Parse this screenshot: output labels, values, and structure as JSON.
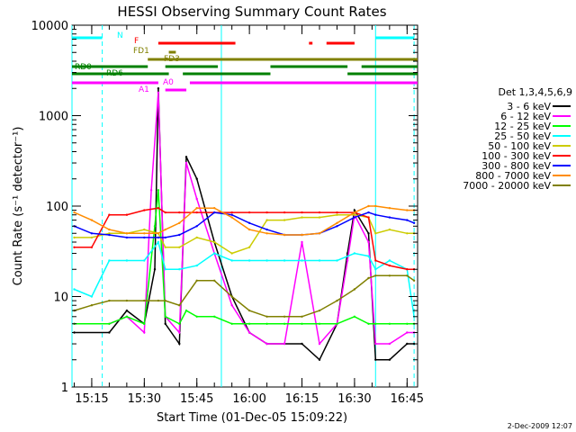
{
  "chart_data": {
    "type": "line",
    "title": "HESSI Observing Summary Count Rates",
    "xlabel": "Start Time (01-Dec-05 15:09:22)",
    "ylabel": "Count Rate (s⁻¹ detector⁻¹)",
    "xlim": [
      "15:09:22",
      "16:48:00"
    ],
    "ylim": [
      1,
      10000
    ],
    "yscale": "log",
    "x_ticks": [
      "15:15",
      "15:30",
      "15:45",
      "16:00",
      "16:15",
      "16:30",
      "16:45"
    ],
    "y_ticks": [
      "1",
      "10",
      "100",
      "1000",
      "10000"
    ],
    "legend_title": "Det 1,3,4,5,6,9",
    "legend_position": "right",
    "series": [
      {
        "name": "3 - 6 keV",
        "color": "#000000",
        "x": [
          "15:10",
          "15:20",
          "15:25",
          "15:30",
          "15:33",
          "15:34",
          "15:36",
          "15:40",
          "15:42",
          "15:45",
          "15:50",
          "15:55",
          "16:00",
          "16:05",
          "16:10",
          "16:15",
          "16:20",
          "16:25",
          "16:28",
          "16:30",
          "16:34",
          "16:36",
          "16:40",
          "16:45",
          "16:47"
        ],
        "values": [
          4,
          4,
          7,
          5,
          20,
          2000,
          5,
          3,
          350,
          200,
          40,
          10,
          4,
          3,
          3,
          3,
          2,
          5,
          30,
          90,
          50,
          2,
          2,
          3,
          3
        ]
      },
      {
        "name": "6 - 12 keV",
        "color": "#ff00ff",
        "x": [
          "15:10",
          "15:20",
          "15:25",
          "15:30",
          "15:32",
          "15:34",
          "15:36",
          "15:40",
          "15:42",
          "15:45",
          "15:50",
          "15:55",
          "16:00",
          "16:05",
          "16:10",
          "16:15",
          "16:20",
          "16:25",
          "16:28",
          "16:30",
          "16:34",
          "16:36",
          "16:40",
          "16:45",
          "16:47"
        ],
        "values": [
          5,
          5,
          6,
          4,
          150,
          1800,
          6,
          4,
          300,
          120,
          30,
          8,
          4,
          3,
          3,
          40,
          3,
          5,
          25,
          80,
          40,
          3,
          3,
          4,
          4
        ]
      },
      {
        "name": "12 - 25 keV",
        "color": "#00ff00",
        "x": [
          "15:10",
          "15:20",
          "15:25",
          "15:30",
          "15:33",
          "15:34",
          "15:36",
          "15:40",
          "15:42",
          "15:45",
          "15:50",
          "15:55",
          "16:00",
          "16:05",
          "16:10",
          "16:15",
          "16:20",
          "16:25",
          "16:30",
          "16:34",
          "16:36",
          "16:40",
          "16:45",
          "16:47"
        ],
        "values": [
          5,
          5,
          6,
          5,
          60,
          150,
          6,
          5,
          7,
          6,
          6,
          5,
          5,
          5,
          5,
          5,
          5,
          5,
          6,
          5,
          5,
          5,
          5,
          5
        ]
      },
      {
        "name": "25 - 50 keV",
        "color": "#00ffff",
        "x": [
          "15:10",
          "15:15",
          "15:20",
          "15:25",
          "15:30",
          "15:34",
          "15:36",
          "15:40",
          "15:45",
          "15:50",
          "15:55",
          "16:00",
          "16:05",
          "16:10",
          "16:15",
          "16:20",
          "16:25",
          "16:30",
          "16:34",
          "16:36",
          "16:40",
          "16:45",
          "16:47"
        ],
        "values": [
          12,
          10,
          25,
          25,
          25,
          40,
          20,
          20,
          22,
          30,
          25,
          25,
          25,
          25,
          25,
          25,
          25,
          30,
          28,
          20,
          25,
          20,
          6
        ]
      },
      {
        "name": "50 - 100 keV",
        "color": "#cccc00",
        "x": [
          "15:10",
          "15:15",
          "15:20",
          "15:25",
          "15:30",
          "15:34",
          "15:36",
          "15:40",
          "15:45",
          "15:50",
          "15:55",
          "16:00",
          "16:05",
          "16:10",
          "16:15",
          "16:20",
          "16:25",
          "16:30",
          "16:34",
          "16:36",
          "16:40",
          "16:45",
          "16:47"
        ],
        "values": [
          45,
          45,
          50,
          50,
          55,
          50,
          35,
          35,
          45,
          40,
          30,
          35,
          70,
          70,
          75,
          75,
          80,
          80,
          75,
          50,
          55,
          50,
          50
        ]
      },
      {
        "name": "100 - 300 keV",
        "color": "#ff0000",
        "x": [
          "15:10",
          "15:15",
          "15:20",
          "15:25",
          "15:30",
          "15:34",
          "15:36",
          "15:40",
          "15:45",
          "15:50",
          "15:55",
          "16:00",
          "16:05",
          "16:10",
          "16:15",
          "16:20",
          "16:25",
          "16:30",
          "16:34",
          "16:36",
          "16:40",
          "16:45",
          "16:47"
        ],
        "values": [
          35,
          35,
          80,
          80,
          90,
          95,
          85,
          85,
          85,
          85,
          85,
          85,
          85,
          85,
          85,
          85,
          85,
          85,
          75,
          25,
          22,
          20,
          20
        ]
      },
      {
        "name": "300 - 800 keV",
        "color": "#0000ff",
        "x": [
          "15:10",
          "15:15",
          "15:20",
          "15:25",
          "15:30",
          "15:34",
          "15:36",
          "15:40",
          "15:45",
          "15:50",
          "15:55",
          "16:00",
          "16:05",
          "16:10",
          "16:15",
          "16:20",
          "16:25",
          "16:30",
          "16:34",
          "16:36",
          "16:40",
          "16:45",
          "16:47"
        ],
        "values": [
          60,
          50,
          48,
          45,
          45,
          45,
          45,
          48,
          60,
          85,
          80,
          65,
          55,
          48,
          48,
          50,
          60,
          75,
          85,
          80,
          75,
          70,
          65
        ]
      },
      {
        "name": "800 - 7000 keV",
        "color": "#ff8c00",
        "x": [
          "15:10",
          "15:15",
          "15:20",
          "15:25",
          "15:30",
          "15:34",
          "15:36",
          "15:40",
          "15:45",
          "15:50",
          "15:55",
          "16:00",
          "16:05",
          "16:10",
          "16:15",
          "16:20",
          "16:25",
          "16:30",
          "16:34",
          "16:36",
          "16:40",
          "16:45",
          "16:47"
        ],
        "values": [
          85,
          70,
          55,
          50,
          50,
          50,
          55,
          65,
          95,
          95,
          75,
          55,
          50,
          48,
          48,
          50,
          65,
          85,
          100,
          100,
          95,
          90,
          90
        ]
      },
      {
        "name": "7000 - 20000 keV",
        "color": "#808000",
        "x": [
          "15:10",
          "15:15",
          "15:20",
          "15:25",
          "15:30",
          "15:34",
          "15:36",
          "15:40",
          "15:45",
          "15:50",
          "15:55",
          "16:00",
          "16:05",
          "16:10",
          "16:15",
          "16:20",
          "16:25",
          "16:30",
          "16:34",
          "16:36",
          "16:40",
          "16:45",
          "16:47"
        ],
        "values": [
          7,
          8,
          9,
          9,
          9,
          9,
          9,
          8,
          15,
          15,
          10,
          7,
          6,
          6,
          6,
          7,
          9,
          12,
          16,
          17,
          17,
          17,
          15
        ]
      }
    ],
    "annotations": [
      {
        "text": "N",
        "color": "#00ffff"
      },
      {
        "text": "F",
        "color": "#ff0000"
      },
      {
        "text": "FD1",
        "color": "#808000"
      },
      {
        "text": "FD3",
        "color": "#808000"
      },
      {
        "text": "RD0",
        "color": "#008000"
      },
      {
        "text": "RD6",
        "color": "#008000"
      },
      {
        "text": "A0",
        "color": "#ff00ff"
      },
      {
        "text": "A1",
        "color": "#ff00ff"
      }
    ],
    "status_bars": [
      {
        "label": "N",
        "color": "#00ffff",
        "segments": [
          [
            "15:09:22",
            "15:18"
          ],
          [
            "16:36",
            "16:47"
          ]
        ]
      },
      {
        "label": "F",
        "color": "#ff0000",
        "segments": [
          [
            "15:34",
            "15:56"
          ],
          [
            "16:17",
            "16:18"
          ],
          [
            "16:22",
            "16:30"
          ]
        ]
      },
      {
        "label": "FD1",
        "color": "#808000",
        "segments": [
          [
            "15:37",
            "15:39"
          ]
        ]
      },
      {
        "label": "FD3",
        "color": "#808000",
        "segments": [
          [
            "15:31",
            "16:48"
          ]
        ]
      },
      {
        "label": "RD0",
        "color": "#008000",
        "segments": [
          [
            "15:09:22",
            "15:31"
          ],
          [
            "15:36",
            "15:51"
          ],
          [
            "16:06",
            "16:28"
          ],
          [
            "16:32",
            "16:48"
          ]
        ]
      },
      {
        "label": "RD6",
        "color": "#008000",
        "segments": [
          [
            "15:09:22",
            "15:37"
          ],
          [
            "15:41",
            "16:06"
          ],
          [
            "16:28",
            "16:48"
          ]
        ]
      },
      {
        "label": "A0",
        "color": "#ff00ff",
        "segments": [
          [
            "15:09:22",
            "15:34"
          ],
          [
            "15:43",
            "16:48"
          ]
        ]
      },
      {
        "label": "A1",
        "color": "#ff00ff",
        "segments": [
          [
            "15:36",
            "15:42"
          ]
        ]
      }
    ],
    "vertical_markers": [
      {
        "time": "15:09:22",
        "color": "#00ffff",
        "style": "solid"
      },
      {
        "time": "15:18",
        "color": "#00ffff",
        "style": "dashed"
      },
      {
        "time": "15:52",
        "color": "#00ffff",
        "style": "solid"
      },
      {
        "time": "16:36",
        "color": "#00ffff",
        "style": "solid"
      },
      {
        "time": "16:47",
        "color": "#00ffff",
        "style": "dashed"
      }
    ]
  },
  "footer": {
    "timestamp": "2-Dec-2009 12:07"
  }
}
